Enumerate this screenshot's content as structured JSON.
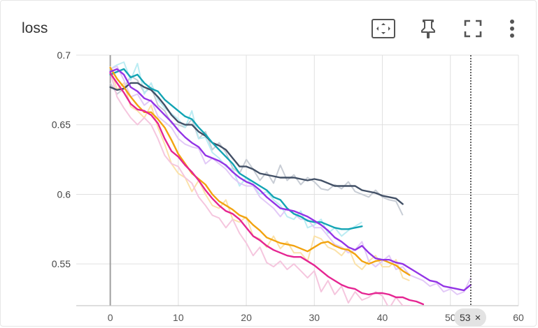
{
  "card": {
    "title": "loss",
    "toolbar": {
      "icons": [
        "fit-domain-icon",
        "pin-icon",
        "fullscreen-icon",
        "more-vert-icon"
      ]
    }
  },
  "hover": {
    "step_label": "53",
    "close_glyph": "×"
  },
  "chart_data": {
    "type": "line",
    "title": "loss",
    "xlabel": "",
    "ylabel": "",
    "xlim": [
      -5,
      60
    ],
    "ylim": [
      0.52,
      0.7
    ],
    "xticks": [
      0,
      10,
      20,
      30,
      40,
      50,
      60
    ],
    "xtick_labels": [
      "0",
      "10",
      "20",
      "30",
      "40",
      "50",
      "60"
    ],
    "yticks": [
      0.55,
      0.6,
      0.65,
      0.7
    ],
    "ytick_labels": [
      "0.55",
      "0.6",
      "0.65",
      "0.7"
    ],
    "grid": true,
    "hover_step": 53,
    "series": [
      {
        "color": "#425066",
        "raw_color": "#c5cad3",
        "x": [
          0,
          1,
          2,
          3,
          4,
          5,
          6,
          7,
          8,
          9,
          10,
          11,
          12,
          13,
          14,
          15,
          16,
          17,
          18,
          19,
          20,
          21,
          22,
          23,
          24,
          25,
          26,
          27,
          28,
          29,
          30,
          31,
          32,
          33,
          34,
          35,
          36,
          37,
          38,
          39,
          40,
          41,
          42,
          43
        ],
        "smoothed": [
          0.677,
          0.675,
          0.676,
          0.68,
          0.68,
          0.677,
          0.675,
          0.67,
          0.664,
          0.657,
          0.652,
          0.65,
          0.65,
          0.645,
          0.642,
          0.637,
          0.635,
          0.632,
          0.626,
          0.62,
          0.62,
          0.618,
          0.615,
          0.614,
          0.613,
          0.612,
          0.612,
          0.612,
          0.611,
          0.61,
          0.611,
          0.61,
          0.608,
          0.606,
          0.606,
          0.606,
          0.606,
          0.603,
          0.602,
          0.601,
          0.599,
          0.598,
          0.597,
          0.593
        ],
        "raw": [
          0.68,
          0.672,
          0.676,
          0.685,
          0.682,
          0.673,
          0.677,
          0.664,
          0.66,
          0.651,
          0.65,
          0.648,
          0.654,
          0.64,
          0.645,
          0.632,
          0.637,
          0.63,
          0.619,
          0.615,
          0.625,
          0.618,
          0.61,
          0.616,
          0.608,
          0.621,
          0.61,
          0.614,
          0.607,
          0.612,
          0.609,
          0.604,
          0.603,
          0.607,
          0.604,
          0.609,
          0.602,
          0.6,
          0.598,
          0.603,
          0.598,
          0.596,
          0.595,
          0.585
        ]
      },
      {
        "color": "#12a4b4",
        "raw_color": "#b7ebf2",
        "x": [
          0,
          1,
          2,
          3,
          4,
          5,
          6,
          7,
          8,
          9,
          10,
          11,
          12,
          13,
          14,
          15,
          16,
          17,
          18,
          19,
          20,
          21,
          22,
          23,
          24,
          25,
          26,
          27,
          28,
          29,
          30,
          31,
          32,
          33,
          34,
          35,
          36,
          37
        ],
        "smoothed": [
          0.686,
          0.688,
          0.69,
          0.684,
          0.686,
          0.68,
          0.676,
          0.674,
          0.668,
          0.664,
          0.66,
          0.656,
          0.654,
          0.648,
          0.643,
          0.637,
          0.632,
          0.627,
          0.622,
          0.615,
          0.612,
          0.609,
          0.606,
          0.603,
          0.598,
          0.596,
          0.59,
          0.586,
          0.584,
          0.581,
          0.58,
          0.58,
          0.578,
          0.576,
          0.575,
          0.575,
          0.576,
          0.577
        ],
        "raw": [
          0.69,
          0.693,
          0.695,
          0.682,
          0.694,
          0.672,
          0.68,
          0.668,
          0.662,
          0.658,
          0.654,
          0.648,
          0.66,
          0.64,
          0.641,
          0.63,
          0.626,
          0.62,
          0.618,
          0.606,
          0.612,
          0.606,
          0.6,
          0.602,
          0.596,
          0.592,
          0.584,
          0.582,
          0.588,
          0.576,
          0.578,
          0.582,
          0.572,
          0.576,
          0.57,
          0.574,
          0.577,
          0.58
        ]
      },
      {
        "color": "#f2a30f",
        "raw_color": "#fbe0a5",
        "x": [
          0,
          1,
          2,
          3,
          4,
          5,
          6,
          7,
          8,
          9,
          10,
          11,
          12,
          13,
          14,
          15,
          16,
          17,
          18,
          19,
          20,
          21,
          22,
          23,
          24,
          25,
          26,
          27,
          28,
          29,
          30,
          31,
          32,
          33,
          34,
          35,
          36,
          37,
          38,
          39,
          40,
          41,
          42,
          43,
          44
        ],
        "smoothed": [
          0.691,
          0.683,
          0.677,
          0.67,
          0.664,
          0.659,
          0.659,
          0.654,
          0.648,
          0.639,
          0.629,
          0.622,
          0.615,
          0.611,
          0.607,
          0.6,
          0.595,
          0.592,
          0.589,
          0.585,
          0.583,
          0.578,
          0.574,
          0.569,
          0.567,
          0.565,
          0.564,
          0.563,
          0.561,
          0.559,
          0.562,
          0.565,
          0.566,
          0.563,
          0.561,
          0.56,
          0.557,
          0.552,
          0.55,
          0.552,
          0.553,
          0.551,
          0.549,
          0.545,
          0.542
        ],
        "raw": [
          0.692,
          0.675,
          0.68,
          0.663,
          0.66,
          0.655,
          0.664,
          0.648,
          0.636,
          0.622,
          0.615,
          0.612,
          0.602,
          0.61,
          0.6,
          0.592,
          0.59,
          0.596,
          0.582,
          0.58,
          0.584,
          0.57,
          0.568,
          0.562,
          0.57,
          0.561,
          0.566,
          0.558,
          0.558,
          0.552,
          0.57,
          0.568,
          0.562,
          0.56,
          0.556,
          0.562,
          0.55,
          0.546,
          0.552,
          0.556,
          0.548,
          0.548,
          0.553,
          0.54,
          0.538
        ]
      },
      {
        "color": "#e52592",
        "raw_color": "#f4c3dc",
        "x": [
          0,
          1,
          2,
          3,
          4,
          5,
          6,
          7,
          8,
          9,
          10,
          11,
          12,
          13,
          14,
          15,
          16,
          17,
          18,
          19,
          20,
          21,
          22,
          23,
          24,
          25,
          26,
          27,
          28,
          29,
          30,
          31,
          32,
          33,
          34,
          35,
          36,
          37,
          38,
          39,
          40,
          41,
          42,
          43,
          44,
          45,
          46
        ],
        "smoothed": [
          0.687,
          0.68,
          0.673,
          0.665,
          0.661,
          0.66,
          0.657,
          0.651,
          0.64,
          0.631,
          0.627,
          0.621,
          0.616,
          0.61,
          0.603,
          0.597,
          0.592,
          0.588,
          0.586,
          0.582,
          0.576,
          0.57,
          0.567,
          0.563,
          0.56,
          0.558,
          0.556,
          0.555,
          0.555,
          0.552,
          0.549,
          0.545,
          0.541,
          0.538,
          0.535,
          0.533,
          0.532,
          0.529,
          0.528,
          0.529,
          0.529,
          0.528,
          0.526,
          0.526,
          0.524,
          0.523,
          0.521
        ],
        "raw": [
          0.688,
          0.67,
          0.662,
          0.655,
          0.65,
          0.655,
          0.65,
          0.64,
          0.628,
          0.622,
          0.62,
          0.612,
          0.608,
          0.598,
          0.592,
          0.585,
          0.583,
          0.576,
          0.582,
          0.572,
          0.565,
          0.556,
          0.562,
          0.551,
          0.548,
          0.552,
          0.546,
          0.55,
          0.545,
          0.54,
          0.545,
          0.53,
          0.538,
          0.528,
          0.534,
          0.522,
          0.53,
          0.524,
          0.526,
          0.53,
          0.527,
          0.518,
          0.526,
          0.52,
          0.52,
          0.518,
          0.518
        ]
      },
      {
        "color": "#9334e6",
        "raw_color": "#e0c6f7",
        "x": [
          0,
          1,
          2,
          3,
          4,
          5,
          6,
          7,
          8,
          9,
          10,
          11,
          12,
          13,
          14,
          15,
          16,
          17,
          18,
          19,
          20,
          21,
          22,
          23,
          24,
          25,
          26,
          27,
          28,
          29,
          30,
          31,
          32,
          33,
          34,
          35,
          36,
          37,
          38,
          39,
          40,
          41,
          42,
          43,
          44,
          45,
          46,
          47,
          48,
          49,
          50,
          51,
          52,
          53
        ],
        "smoothed": [
          0.688,
          0.69,
          0.686,
          0.677,
          0.674,
          0.669,
          0.667,
          0.662,
          0.657,
          0.652,
          0.646,
          0.641,
          0.637,
          0.634,
          0.628,
          0.626,
          0.624,
          0.621,
          0.616,
          0.612,
          0.609,
          0.607,
          0.603,
          0.598,
          0.594,
          0.59,
          0.589,
          0.588,
          0.586,
          0.584,
          0.581,
          0.578,
          0.574,
          0.569,
          0.566,
          0.562,
          0.56,
          0.563,
          0.558,
          0.554,
          0.553,
          0.553,
          0.551,
          0.55,
          0.547,
          0.544,
          0.541,
          0.538,
          0.537,
          0.534,
          0.533,
          0.532,
          0.531,
          0.535
        ],
        "raw": [
          0.69,
          0.692,
          0.682,
          0.67,
          0.672,
          0.664,
          0.668,
          0.656,
          0.652,
          0.648,
          0.64,
          0.636,
          0.634,
          0.633,
          0.622,
          0.626,
          0.622,
          0.618,
          0.612,
          0.608,
          0.606,
          0.606,
          0.598,
          0.594,
          0.59,
          0.584,
          0.59,
          0.586,
          0.582,
          0.582,
          0.576,
          0.576,
          0.57,
          0.564,
          0.562,
          0.558,
          0.56,
          0.566,
          0.552,
          0.548,
          0.552,
          0.556,
          0.546,
          0.548,
          0.542,
          0.54,
          0.538,
          0.534,
          0.536,
          0.53,
          0.532,
          0.528,
          0.53,
          0.54
        ]
      }
    ]
  }
}
